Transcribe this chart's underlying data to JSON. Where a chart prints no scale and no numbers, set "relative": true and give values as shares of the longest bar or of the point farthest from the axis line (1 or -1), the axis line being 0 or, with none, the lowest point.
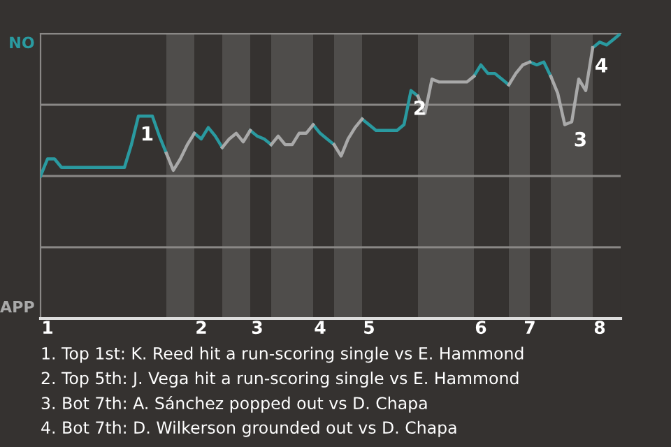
{
  "chart_data": {
    "type": "line",
    "relative": true,
    "categories": [
      null,
      "1",
      null,
      null,
      null,
      null,
      null,
      null,
      null,
      null,
      null,
      null,
      null,
      null,
      null,
      null,
      null,
      null,
      null,
      null,
      null,
      null,
      null,
      "2",
      null,
      null,
      null,
      null,
      null,
      null,
      null,
      "3",
      null,
      null,
      null,
      null,
      null,
      null,
      null,
      null,
      "4",
      null,
      null,
      null,
      null,
      null,
      null,
      "5",
      null,
      null,
      null,
      null,
      null,
      null,
      null,
      null,
      null,
      null,
      null,
      null,
      null,
      null,
      null,
      "6",
      null,
      null,
      null,
      null,
      null,
      null,
      "7",
      null,
      null,
      null,
      null,
      null,
      null,
      null,
      null,
      null,
      "8",
      null,
      null,
      null
    ],
    "grid": "y",
    "marker": "none",
    "line_style": "solid",
    "series": [
      {
        "name": "NO",
        "color": "#2a9aa0",
        "values": [
          0.5,
          0.56,
          0.56,
          0.53,
          0.53,
          0.53,
          0.53,
          0.53,
          0.53,
          0.53,
          0.53,
          0.53,
          0.53,
          0.61,
          0.71,
          0.71,
          0.71,
          0.64,
          0.58,
          null,
          null,
          null,
          0.65,
          0.63,
          0.67,
          0.64,
          0.6,
          null,
          null,
          null,
          0.66,
          0.64,
          0.63,
          0.61,
          null,
          null,
          null,
          null,
          null,
          0.68,
          0.65,
          0.63,
          0.61,
          null,
          null,
          null,
          0.7,
          0.68,
          0.66,
          0.66,
          0.66,
          0.66,
          0.68,
          0.8,
          0.78,
          null,
          null,
          null,
          null,
          null,
          null,
          null,
          0.85,
          0.89,
          0.86,
          0.86,
          0.84,
          0.82,
          null,
          null,
          0.9,
          0.89,
          0.9,
          0.85,
          null,
          null,
          null,
          null,
          null,
          0.95,
          0.97,
          0.96,
          0.98,
          1
        ]
      },
      {
        "name": "APP",
        "color": "#a9a9a9",
        "values": [
          null,
          null,
          null,
          null,
          null,
          null,
          null,
          null,
          null,
          null,
          null,
          null,
          null,
          null,
          null,
          null,
          null,
          null,
          0.58,
          0.52,
          0.56,
          0.61,
          0.65,
          null,
          null,
          null,
          0.6,
          0.63,
          0.65,
          0.62,
          0.66,
          null,
          null,
          0.61,
          0.64,
          0.61,
          0.61,
          0.65,
          0.65,
          0.68,
          null,
          null,
          0.61,
          0.57,
          0.63,
          0.67,
          0.7,
          null,
          null,
          null,
          null,
          null,
          null,
          null,
          0.78,
          0.72,
          0.84,
          0.83,
          0.83,
          0.83,
          0.83,
          0.83,
          0.85,
          null,
          null,
          null,
          null,
          0.82,
          0.86,
          0.89,
          0.9,
          null,
          null,
          0.85,
          0.79,
          0.68,
          0.69,
          0.84,
          0.8,
          0.95,
          null,
          null,
          null,
          null
        ]
      }
    ],
    "annotations": [
      {
        "text": "1",
        "y": 0.71
      },
      {
        "text": "2",
        "y": 0.8
      },
      {
        "text": "3",
        "y": 0.69
      },
      {
        "text": "4",
        "y": 0.95
      },
      "1. Top 1st: K. Reed hit a run-scoring single vs E. Hammond",
      "2. Top 5th: J. Vega hit a run-scoring single vs E. Hammond",
      "3. Bot 7th: A. Sánchez popped out vs D. Chapa",
      "4. Bot 7th: D. Wilkerson grounded out vs D. Chapa"
    ]
  }
}
